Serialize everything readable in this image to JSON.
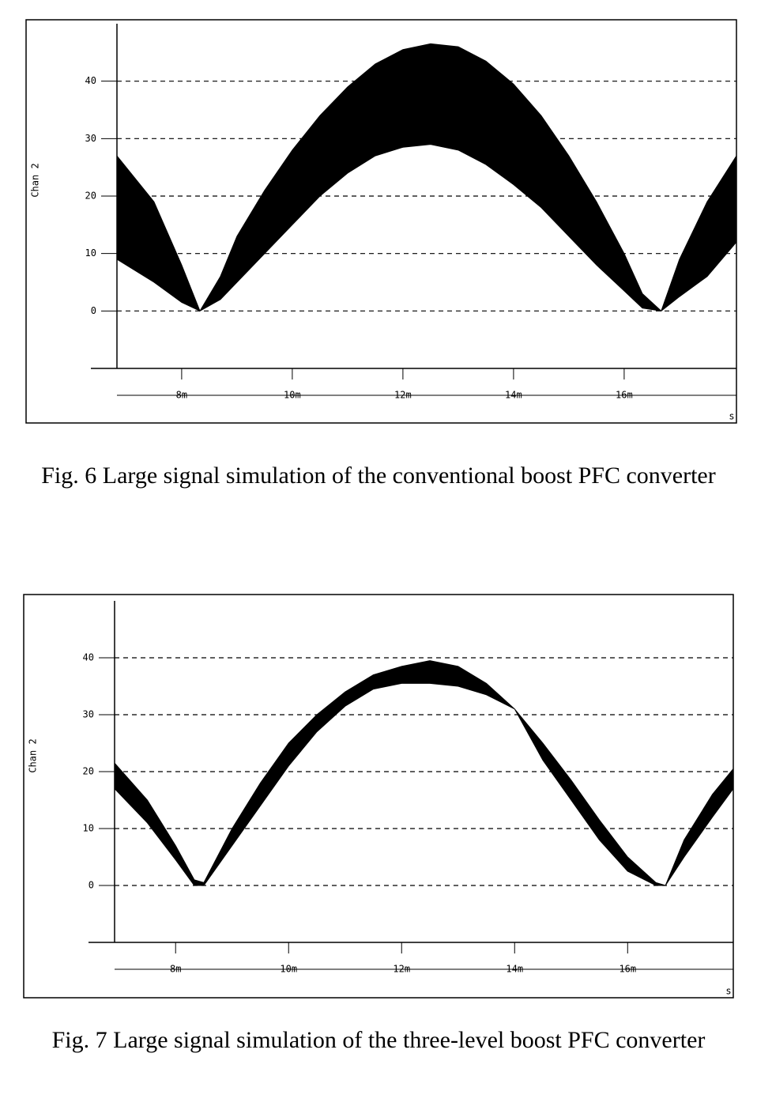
{
  "chart_data": [
    {
      "type": "band",
      "caption": "Fig. 6 Large signal simulation of the conventional boost PFC converter",
      "y_label": "Chan 2",
      "x_unit": "s",
      "color": "#000000",
      "grid": true,
      "x": [
        0.00683,
        0.0075,
        0.008,
        0.00833,
        0.0087,
        0.009,
        0.0095,
        0.01,
        0.0105,
        0.011,
        0.0115,
        0.012,
        0.0125,
        0.013,
        0.0135,
        0.014,
        0.0145,
        0.015,
        0.0155,
        0.016,
        0.01633,
        0.01667,
        0.017,
        0.0175,
        0.01803
      ],
      "high": [
        27,
        19,
        8,
        0,
        6,
        13,
        21,
        28,
        34,
        39,
        43,
        45.5,
        46.5,
        46,
        43.5,
        39.5,
        34,
        27,
        19,
        10,
        3,
        0,
        9,
        19,
        27
      ],
      "low": [
        9,
        5,
        1.5,
        0,
        2,
        5,
        10,
        15,
        20,
        24,
        27,
        28.5,
        29,
        28,
        25.5,
        22,
        18,
        13,
        8,
        3.5,
        0.5,
        0,
        2.5,
        6,
        12
      ],
      "xlim": [
        0.00683,
        0.01803
      ],
      "ylim": [
        -10,
        50
      ],
      "xticks": [
        {
          "value": 0.008,
          "label": "8m"
        },
        {
          "value": 0.01,
          "label": "10m"
        },
        {
          "value": 0.012,
          "label": "12m"
        },
        {
          "value": 0.014,
          "label": "14m"
        },
        {
          "value": 0.016,
          "label": "16m"
        }
      ],
      "yticks": [
        0,
        10,
        20,
        30,
        40
      ]
    },
    {
      "type": "band",
      "caption": "Fig. 7 Large signal simulation of the three-level boost PFC converter",
      "y_label": "Chan 2",
      "x_unit": "s",
      "color": "#000000",
      "grid": true,
      "x": [
        0.00692,
        0.0075,
        0.008,
        0.00833,
        0.0085,
        0.009,
        0.0095,
        0.01,
        0.0105,
        0.011,
        0.0115,
        0.012,
        0.0125,
        0.013,
        0.0135,
        0.014,
        0.0145,
        0.015,
        0.0155,
        0.016,
        0.0165,
        0.01667,
        0.017,
        0.0175,
        0.01787
      ],
      "high": [
        21.5,
        15,
        7,
        1,
        0.5,
        10,
        18,
        25,
        30,
        34,
        37,
        38.5,
        39.5,
        38.5,
        35.5,
        31,
        25,
        18.5,
        11.5,
        5,
        0.5,
        0,
        8,
        16,
        20.5
      ],
      "low": [
        17,
        11,
        4.5,
        0,
        0,
        7,
        14,
        21,
        27,
        31.5,
        34.5,
        35.5,
        35.5,
        35,
        33.5,
        31,
        22,
        15,
        8,
        2.5,
        0,
        0,
        5,
        12,
        17
      ],
      "xlim": [
        0.00692,
        0.01787
      ],
      "ylim": [
        -10,
        50
      ],
      "xticks": [
        {
          "value": 0.008,
          "label": "8m"
        },
        {
          "value": 0.01,
          "label": "10m"
        },
        {
          "value": 0.012,
          "label": "12m"
        },
        {
          "value": 0.014,
          "label": "14m"
        },
        {
          "value": 0.016,
          "label": "16m"
        }
      ],
      "yticks": [
        0,
        10,
        20,
        30,
        40
      ]
    }
  ]
}
